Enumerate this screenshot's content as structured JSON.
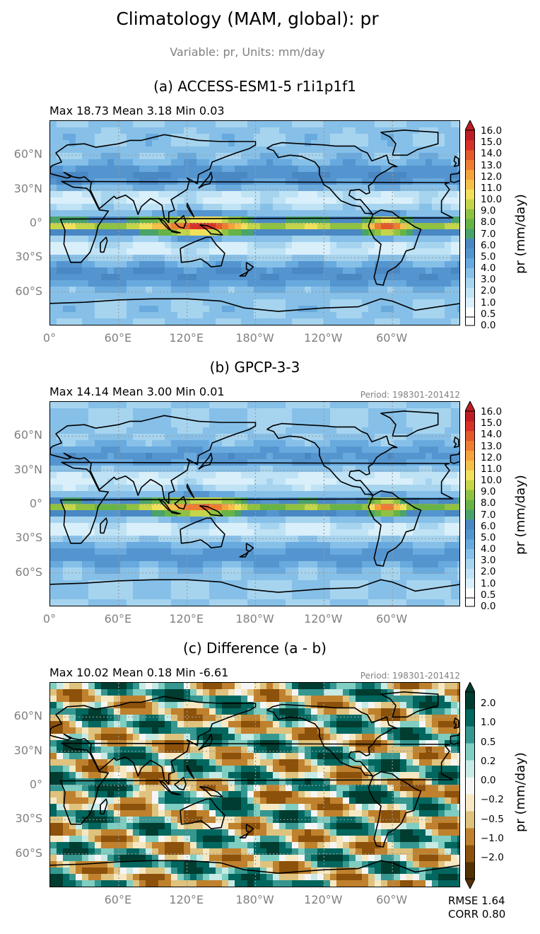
{
  "figure": {
    "title": "Climatology (MAM, global): pr",
    "subtitle": "Variable: pr, Units: mm/day"
  },
  "panels": [
    {
      "id": "a",
      "title": "(a) ACCESS-ESM1-5 r1i1p1f1",
      "stats": "Max 18.73 Mean 3.18 Min 0.03",
      "period": "",
      "cbar_label": "pr (mm/day)",
      "cbar_ticks": [
        "16.0",
        "15.0",
        "14.0",
        "13.0",
        "12.0",
        "11.0",
        "10.0",
        "9.0",
        "8.0",
        "7.0",
        "6.0",
        "5.0",
        "4.0",
        "3.0",
        "2.0",
        "1.0",
        "0.5",
        "0.0"
      ],
      "x_ticks": [
        "0°",
        "60°E",
        "120°E",
        "180°W",
        "120°W",
        "60°W"
      ],
      "y_ticks": [
        "60°N",
        "30°N",
        "0°",
        "30°S",
        "60°S"
      ]
    },
    {
      "id": "b",
      "title": "(b) GPCP-3-3",
      "stats": "Max 14.14 Mean 3.00 Min 0.01",
      "period": "Period: 198301-201412",
      "cbar_label": "pr (mm/day)",
      "cbar_ticks": [
        "16.0",
        "15.0",
        "14.0",
        "13.0",
        "12.0",
        "11.0",
        "10.0",
        "9.0",
        "8.0",
        "7.0",
        "6.0",
        "5.0",
        "4.0",
        "3.0",
        "2.0",
        "1.0",
        "0.5",
        "0.0"
      ],
      "x_ticks": [
        "0°",
        "60°E",
        "120°E",
        "180°W",
        "120°W",
        "60°W"
      ],
      "y_ticks": [
        "60°N",
        "30°N",
        "0°",
        "30°S",
        "60°S"
      ]
    },
    {
      "id": "c",
      "title": "(c) Difference (a - b)",
      "stats": "Max 10.02 Mean 0.18 Min -6.61",
      "period": "Period: 198301-201412",
      "cbar_label": "pr (mm/day)",
      "cbar_ticks": [
        "2.0",
        "1.0",
        "0.5",
        "0.2",
        "0.0",
        "−0.2",
        "−0.5",
        "−1.0",
        "−2.0"
      ],
      "x_ticks": [
        "60°E",
        "120°E",
        "180°W",
        "120°W",
        "60°W"
      ],
      "y_ticks": [
        "60°N",
        "30°N",
        "0°",
        "30°S",
        "60°S"
      ],
      "rmse": "RMSE 1.64",
      "corr": "CORR 0.80"
    }
  ],
  "colors": {
    "abs_scale": [
      "#ffffff",
      "#d9effa",
      "#bfe3f5",
      "#a6d4ef",
      "#86c0e8",
      "#68a9de",
      "#5495cf",
      "#4a88c4",
      "#4aa36a",
      "#67b346",
      "#8fc240",
      "#c4d54a",
      "#f1e15a",
      "#f5c04a",
      "#f4a23c",
      "#ee7d31",
      "#e35a2a",
      "#d73228",
      "#bd1e24"
    ],
    "diff_scale": [
      "#543005",
      "#8c510a",
      "#bf812d",
      "#dfc27d",
      "#f6e8c3",
      "#f5f5f5",
      "#c7eae5",
      "#80cdc1",
      "#35978f",
      "#01665e",
      "#003c30"
    ],
    "coastline": "#000000",
    "gridline": "#9a9a9a"
  }
}
